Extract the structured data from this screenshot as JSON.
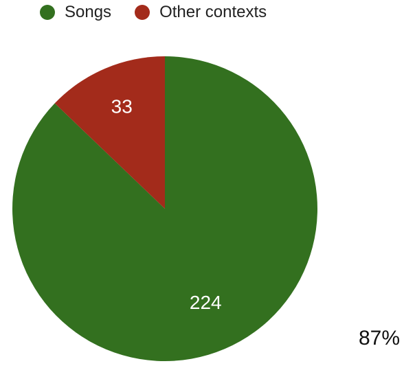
{
  "chart_data": {
    "type": "pie",
    "categories": [
      "Songs",
      "Other contexts"
    ],
    "values": [
      224,
      33
    ],
    "colors": [
      "#33701f",
      "#a32b1b"
    ],
    "legend_position": "top",
    "annotation": "87%"
  }
}
